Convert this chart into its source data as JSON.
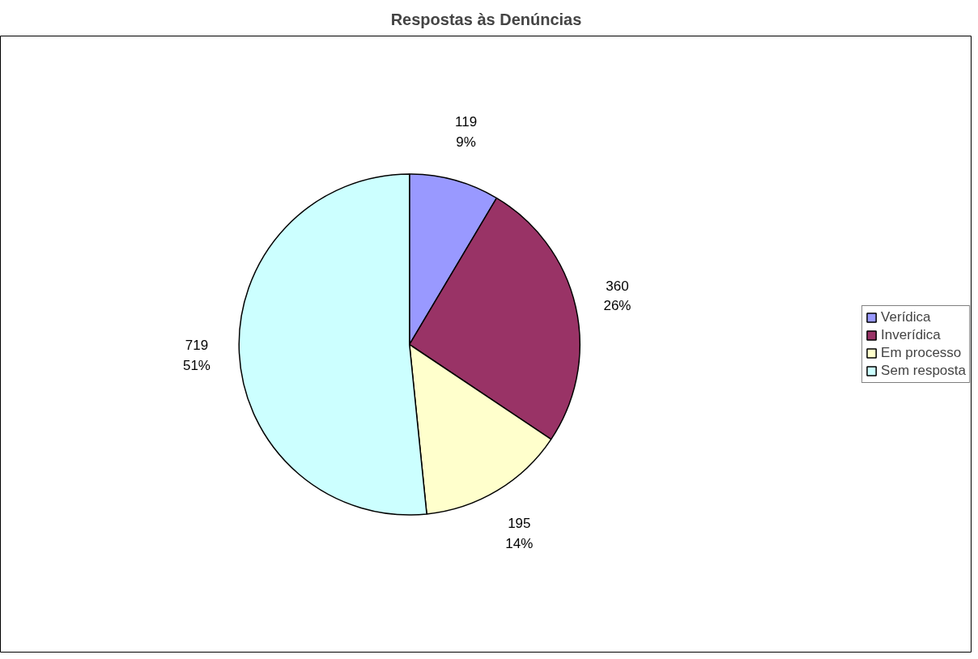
{
  "chart_data": {
    "type": "pie",
    "title": "Respostas às Denúncias",
    "categories": [
      "Verídica",
      "Inverídica",
      "Em processo",
      "Sem resposta"
    ],
    "values": [
      119,
      360,
      195,
      719
    ],
    "colors": [
      "#9999ff",
      "#993366",
      "#ffffcc",
      "#ccffff"
    ],
    "value_labels": [
      "119\n9%",
      "360\n26%",
      "195\n14%",
      "719\n51%"
    ],
    "legend": "right"
  }
}
